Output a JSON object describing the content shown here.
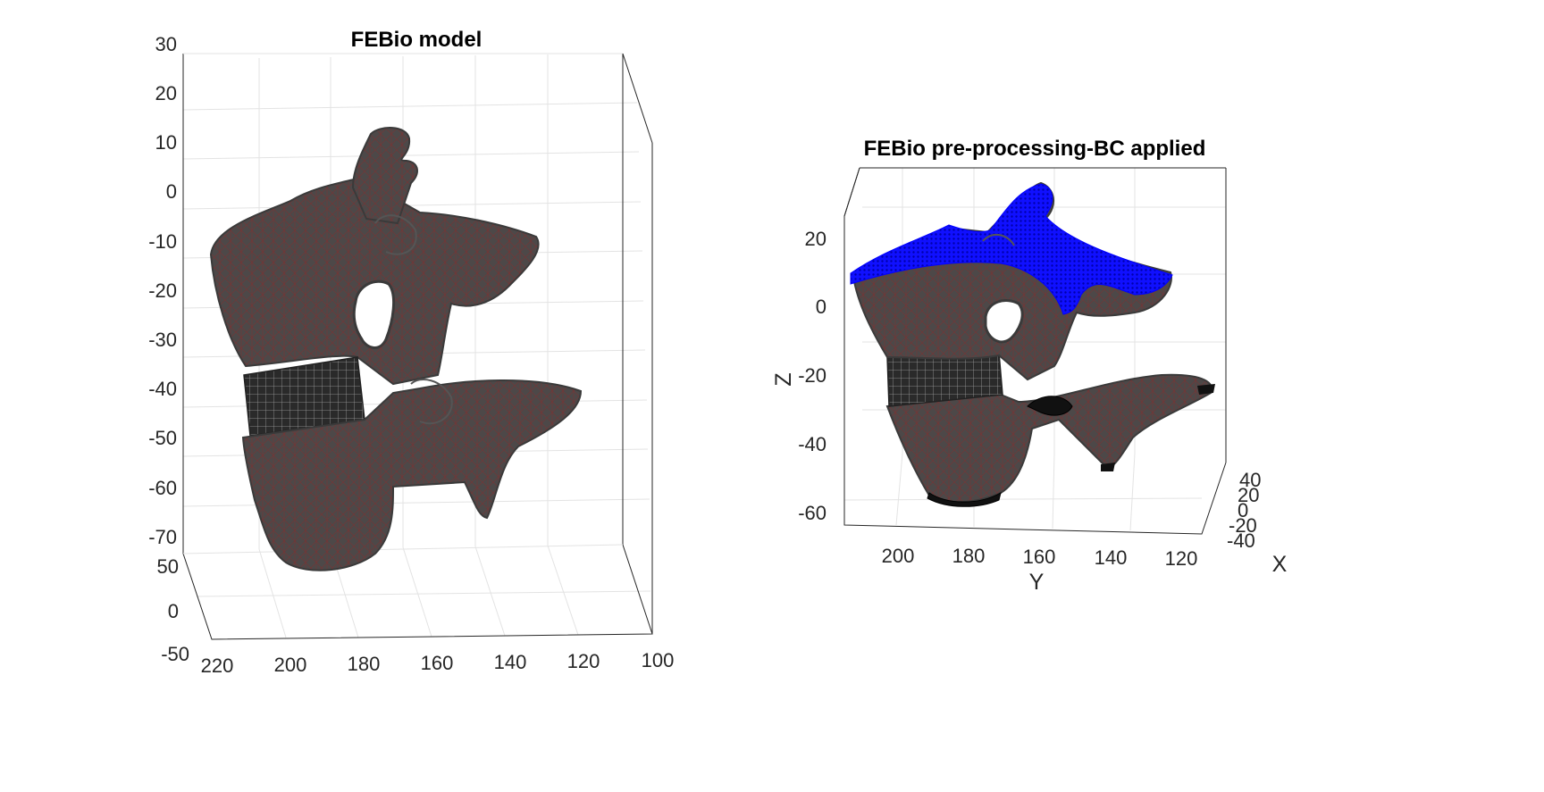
{
  "figure": {
    "left_plot": {
      "title": "FEBio model",
      "z_ticks": [
        "30",
        "20",
        "10",
        "0",
        "-10",
        "-20",
        "-30",
        "-40",
        "-50",
        "-60",
        "-70"
      ],
      "x_ticks": [
        "50",
        "0",
        "-50"
      ],
      "y_ticks": [
        "220",
        "200",
        "180",
        "160",
        "140",
        "120",
        "100"
      ]
    },
    "right_plot": {
      "title": "FEBio pre-processing-BC applied",
      "z_label": "Z",
      "y_label": "Y",
      "x_label": "X",
      "z_ticks": [
        "20",
        "0",
        "-20",
        "-40",
        "-60"
      ],
      "y_ticks": [
        "200",
        "180",
        "160",
        "140",
        "120"
      ],
      "x_ticks": [
        "40",
        "20",
        "0",
        "-20",
        "-40"
      ]
    },
    "colors": {
      "mesh_face": "#4a4a4a",
      "mesh_edge": "#7a1f1f",
      "bc_top": "#0000ff",
      "bc_bottom": "#000000",
      "axes": "#262626",
      "grid": "#e3e3e3"
    }
  }
}
